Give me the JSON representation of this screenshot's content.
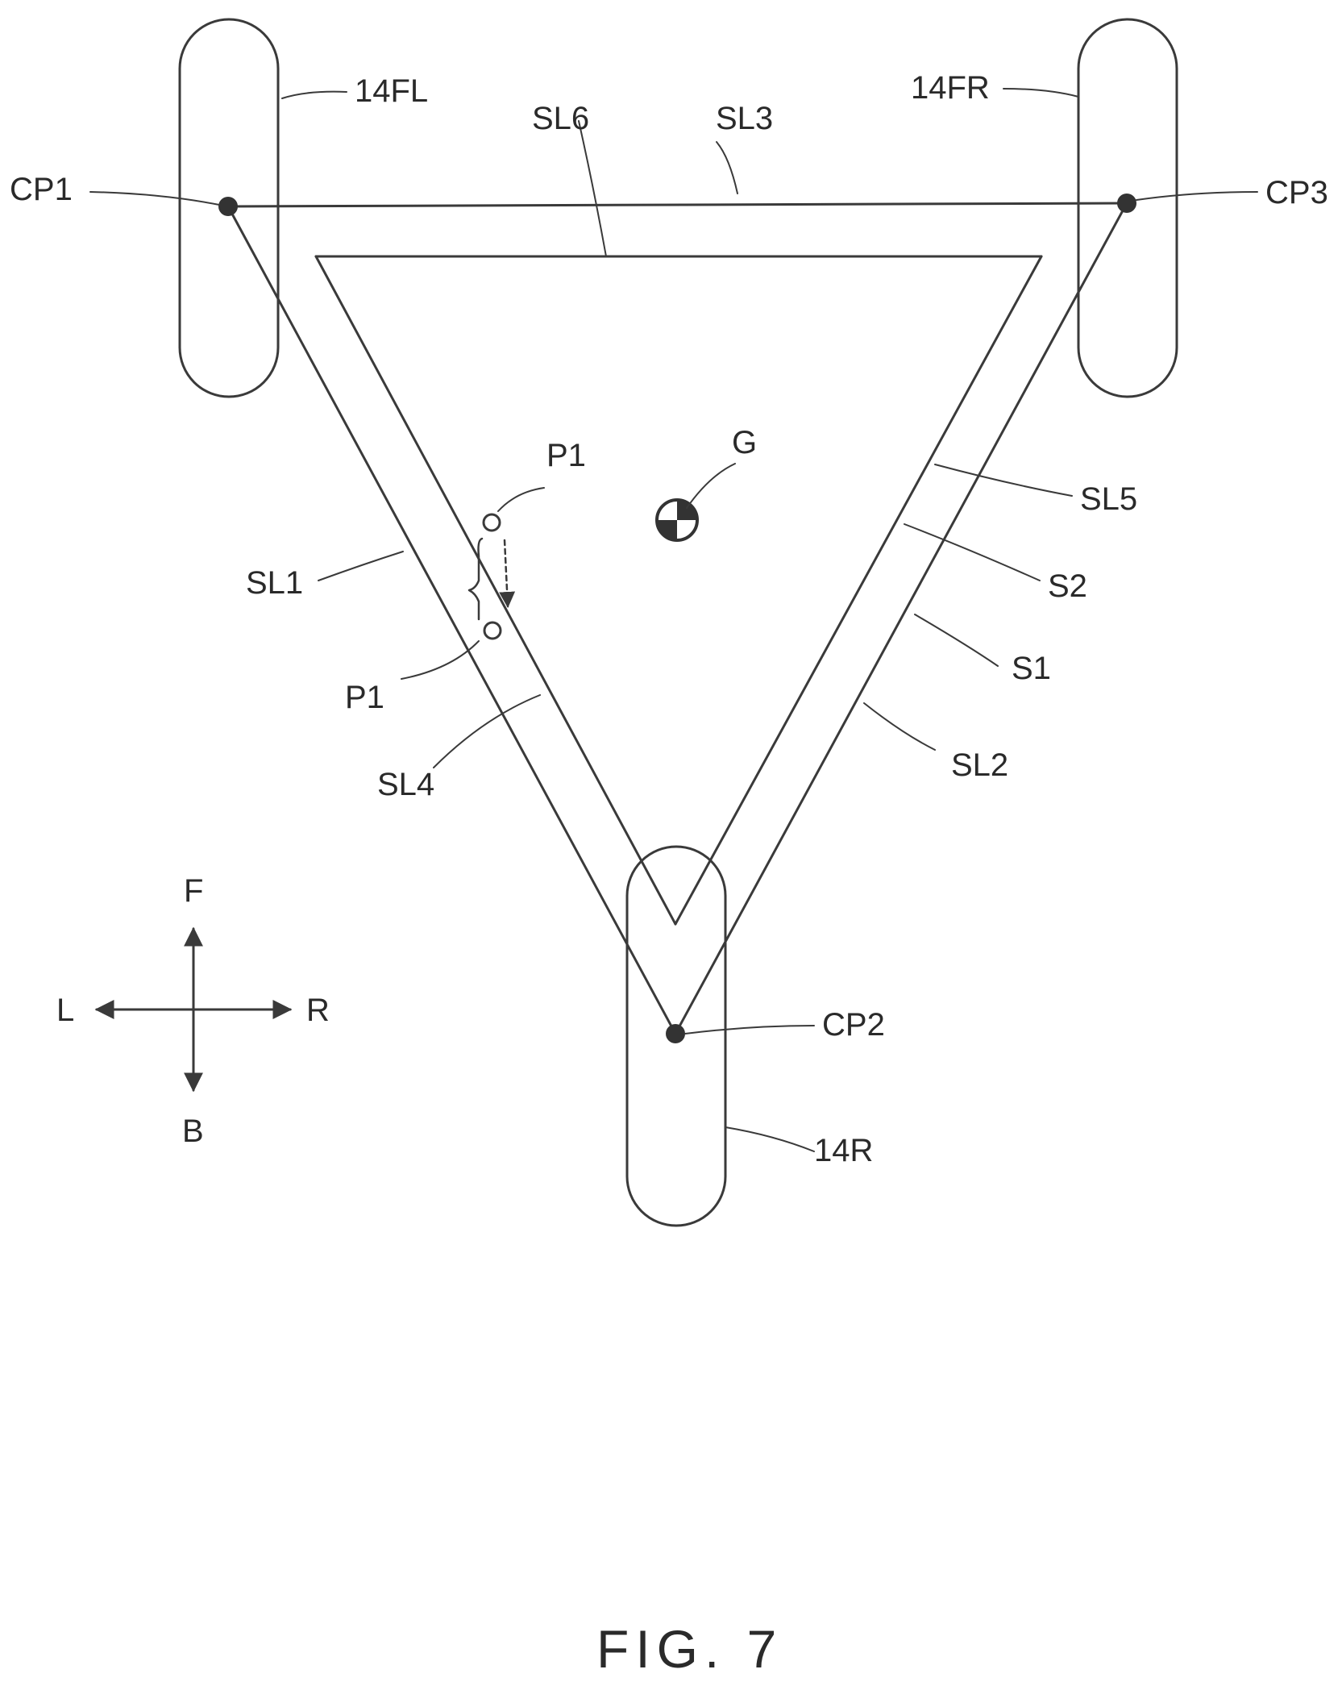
{
  "labels": {
    "wheel_front_left": "14FL",
    "wheel_front_right": "14FR",
    "wheel_rear": "14R",
    "contact_point_1": "CP1",
    "contact_point_2": "CP2",
    "contact_point_3": "CP3",
    "line_sl1": "SL1",
    "line_sl2": "SL2",
    "line_sl3": "SL3",
    "line_sl4": "SL4",
    "line_sl5": "SL5",
    "line_sl6": "SL6",
    "region_s1": "S1",
    "region_s2": "S2",
    "center_of_gravity": "G",
    "point_p1_upper": "P1",
    "point_p1_lower": "P1"
  },
  "direction_indicator": {
    "front": "F",
    "back": "B",
    "left": "L",
    "right": "R"
  },
  "figure_caption": "FIG. 7"
}
